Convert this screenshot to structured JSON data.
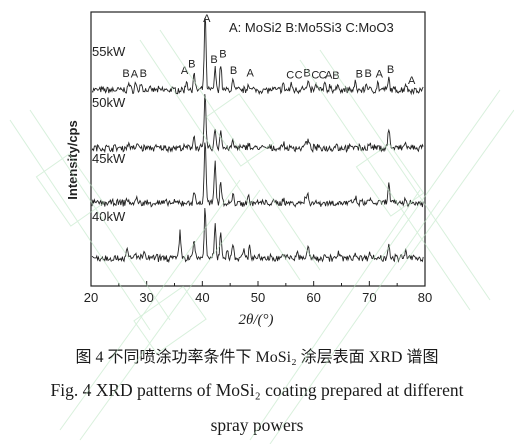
{
  "caption": {
    "cn": "图 4  不同喷涂功率条件下 MoSi₂ 涂层表面 XRD 谱图",
    "en_line1": "Fig. 4 XRD patterns of MoSi₂ coating prepared at different",
    "en_line2": "spray powers"
  },
  "chart_data": {
    "type": "line",
    "xlabel": "2θ/(°)",
    "ylabel": "Intensity/cps",
    "xlim": [
      20,
      80
    ],
    "xticks": [
      "20",
      "30",
      "40",
      "50",
      "60",
      "70",
      "80"
    ],
    "legend_text": "A: MoSi2  B:Mo5Si3  C:MoO3",
    "series": [
      {
        "name": "55kW",
        "peaks": [
          [
            26.8,
            3.2
          ],
          [
            28.0,
            3.0
          ],
          [
            29.0,
            3.2
          ],
          [
            37.2,
            4.5
          ],
          [
            38.5,
            7.5
          ],
          [
            40.5,
            35.0
          ],
          [
            42.3,
            9.5
          ],
          [
            43.3,
            12.0
          ],
          [
            45.5,
            4.5
          ],
          [
            48.3,
            3.5
          ],
          [
            54.5,
            2.5
          ],
          [
            56.0,
            2.5
          ],
          [
            58.0,
            2.5
          ],
          [
            59.0,
            3.5
          ],
          [
            60.5,
            2.5
          ],
          [
            62.0,
            2.5
          ],
          [
            63.0,
            2.3
          ],
          [
            64.5,
            2.2
          ],
          [
            67.5,
            3.0
          ],
          [
            69.5,
            3.2
          ],
          [
            71.5,
            3.0
          ],
          [
            73.5,
            5.0
          ],
          [
            76.5,
            3.0
          ]
        ],
        "labels": [
          [
            "B",
            26.3
          ],
          [
            "A",
            27.8
          ],
          [
            "B",
            29.4
          ],
          [
            "A",
            36.8
          ],
          [
            "B",
            38.1
          ],
          [
            "A",
            40.8
          ],
          [
            "B",
            42.1
          ],
          [
            "B",
            43.7
          ],
          [
            "B",
            45.6
          ],
          [
            "A",
            48.6
          ],
          [
            "C",
            55.8
          ],
          [
            "C",
            57.3
          ],
          [
            "B",
            58.8
          ],
          [
            "C",
            60.3
          ],
          [
            "C",
            61.6
          ],
          [
            "A",
            62.7
          ],
          [
            "B",
            64.0
          ],
          [
            "B",
            68.2
          ],
          [
            "B",
            69.8
          ],
          [
            "A",
            71.8
          ],
          [
            "B",
            73.8
          ],
          [
            "A",
            77.6
          ]
        ]
      },
      {
        "name": "50kW",
        "peaks": [
          [
            26.8,
            2.5
          ],
          [
            28.5,
            2.0
          ],
          [
            38.5,
            6.0
          ],
          [
            40.5,
            25.0
          ],
          [
            42.3,
            9.0
          ],
          [
            43.3,
            8.5
          ],
          [
            45.5,
            3.0
          ],
          [
            48.3,
            2.5
          ],
          [
            54.5,
            2.0
          ],
          [
            58.5,
            2.5
          ],
          [
            59.0,
            3.5
          ],
          [
            64.0,
            2.0
          ],
          [
            67.5,
            2.0
          ],
          [
            70.0,
            2.0
          ],
          [
            73.5,
            9.5
          ],
          [
            76.5,
            2.5
          ]
        ],
        "labels": []
      },
      {
        "name": "45kW",
        "peaks": [
          [
            26.5,
            2.0
          ],
          [
            28.2,
            2.0
          ],
          [
            38.5,
            5.5
          ],
          [
            40.5,
            30.0
          ],
          [
            42.3,
            19.0
          ],
          [
            43.3,
            11.0
          ],
          [
            45.5,
            3.5
          ],
          [
            48.3,
            3.0
          ],
          [
            54.5,
            2.0
          ],
          [
            58.5,
            3.0
          ],
          [
            59.0,
            4.0
          ],
          [
            67.5,
            2.0
          ],
          [
            70.0,
            2.0
          ],
          [
            73.5,
            9.0
          ],
          [
            76.5,
            2.0
          ]
        ],
        "labels": []
      },
      {
        "name": "40kW",
        "peaks": [
          [
            26.5,
            3.5
          ],
          [
            28.0,
            2.5
          ],
          [
            29.5,
            2.5
          ],
          [
            36.0,
            12.0
          ],
          [
            38.5,
            8.5
          ],
          [
            40.5,
            23.0
          ],
          [
            42.3,
            15.0
          ],
          [
            43.3,
            12.0
          ],
          [
            44.5,
            4.0
          ],
          [
            45.5,
            7.0
          ],
          [
            47.5,
            3.5
          ],
          [
            48.5,
            6.0
          ],
          [
            54.5,
            2.5
          ],
          [
            57.0,
            2.5
          ],
          [
            59.0,
            6.0
          ],
          [
            62.0,
            2.0
          ],
          [
            64.5,
            2.0
          ],
          [
            67.5,
            2.5
          ],
          [
            70.0,
            3.0
          ],
          [
            73.5,
            7.5
          ],
          [
            76.5,
            3.0
          ]
        ],
        "labels": []
      }
    ]
  }
}
